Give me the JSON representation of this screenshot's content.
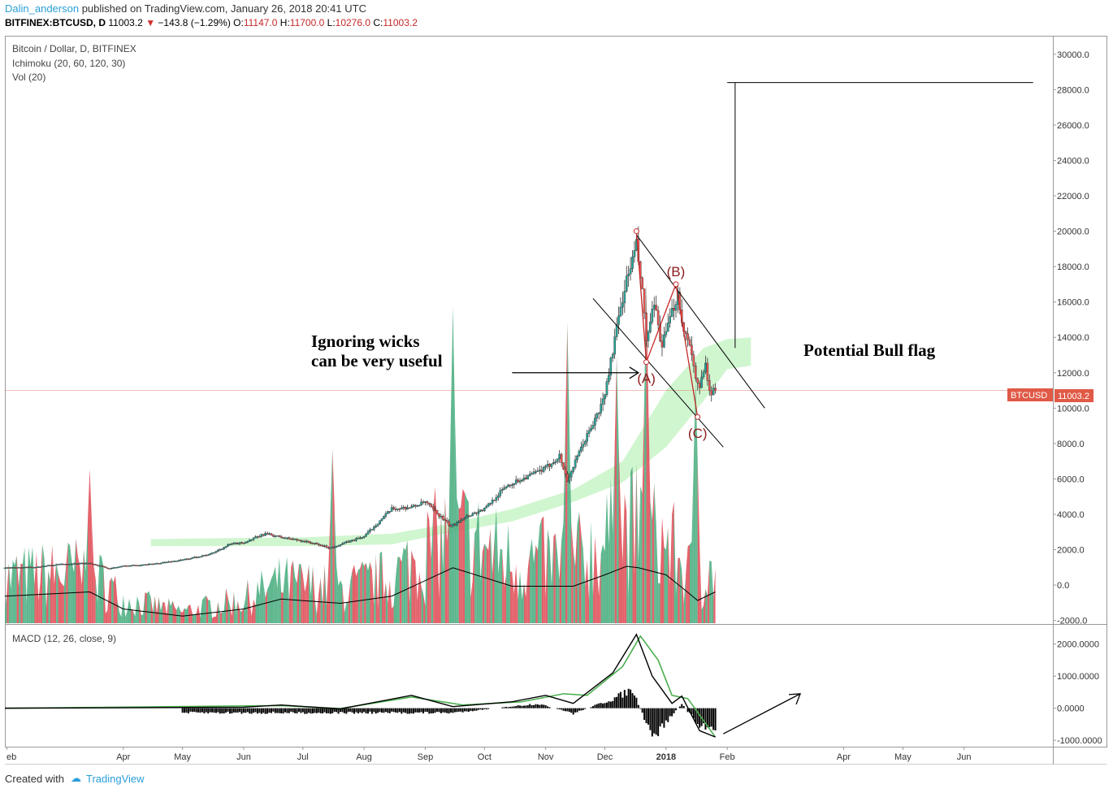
{
  "header": {
    "username": "Dalin_anderson",
    "published_text": "published on TradingView.com, January 26, 2018 20:41 UTC",
    "symbol_line": "BITFINEX:BTCUSD, D",
    "last": "11003.2",
    "change": "−143.8 (−1.29%)",
    "o_label": "O:",
    "o": "11147.0",
    "h_label": "H:",
    "h": "11700.0",
    "l_label": "L:",
    "l": "10276.0",
    "c_label": "C:",
    "c": "11003.2"
  },
  "legend": {
    "title": "Bitcoin / Dollar, D, BITFINEX",
    "ichimoku": "Ichimoku (20, 60, 120, 30)",
    "vol": "Vol (20)",
    "macd": "MACD (12, 26, close, 9)"
  },
  "annotations": {
    "wicks_line1": "Ignoring wicks",
    "wicks_line2": "can be very useful",
    "bull_flag": "Potential Bull flag",
    "wave_a": "(A)",
    "wave_b": "(B)",
    "wave_c": "(C)"
  },
  "price_tag": {
    "label": "BTCUSD",
    "value": "11003.2"
  },
  "footer": {
    "created_with": "Created with",
    "brand": "TradingView"
  },
  "colors": {
    "up": "#26a69a",
    "down": "#ef5350",
    "cloud": "#c8f5c8",
    "annotation": "#8b1a1a",
    "macd_signal": "#4caf50",
    "price_tag": "#e05a47"
  },
  "chart_data": {
    "type": "candlestick",
    "price_axis": {
      "ticks": [
        30000,
        28000,
        26000,
        24000,
        22000,
        20000,
        18000,
        16000,
        14000,
        12000,
        10000,
        8000,
        6000,
        4000,
        2000,
        0,
        -2000
      ],
      "ylim": [
        -2200,
        31000
      ]
    },
    "macd_axis": {
      "ticks": [
        2000,
        1000,
        0,
        -1000
      ],
      "ylim": [
        -1200,
        2600
      ]
    },
    "x_axis_labels": [
      "eb",
      "Apr",
      "May",
      "Jun",
      "Jul",
      "Aug",
      "Sep",
      "Oct",
      "Nov",
      "Dec",
      "2018",
      "Feb",
      "Apr",
      "May",
      "Jun"
    ],
    "x_axis_dates": [
      "2017-02-01",
      "2017-04-01",
      "2017-05-01",
      "2017-06-01",
      "2017-07-01",
      "2017-08-01",
      "2017-09-01",
      "2017-10-01",
      "2017-11-01",
      "2017-12-01",
      "2018-01-01",
      "2018-02-01",
      "2018-04-01",
      "2018-05-01",
      "2018-06-01"
    ],
    "x_range": [
      "2017-01-31",
      "2018-07-16"
    ],
    "last_bar_date": "2018-01-26",
    "price_path": [
      [
        "2017-01-31",
        970
      ],
      [
        "2017-02-15",
        1010
      ],
      [
        "2017-03-01",
        1190
      ],
      [
        "2017-03-15",
        1240
      ],
      [
        "2017-03-25",
        930
      ],
      [
        "2017-04-01",
        1080
      ],
      [
        "2017-04-15",
        1180
      ],
      [
        "2017-05-01",
        1420
      ],
      [
        "2017-05-15",
        1750
      ],
      [
        "2017-05-25",
        2300
      ],
      [
        "2017-06-01",
        2400
      ],
      [
        "2017-06-12",
        2900
      ],
      [
        "2017-06-20",
        2700
      ],
      [
        "2017-07-01",
        2500
      ],
      [
        "2017-07-15",
        2100
      ],
      [
        "2017-07-20",
        2300
      ],
      [
        "2017-08-01",
        2750
      ],
      [
        "2017-08-15",
        4300
      ],
      [
        "2017-08-25",
        4400
      ],
      [
        "2017-09-01",
        4700
      ],
      [
        "2017-09-14",
        3300
      ],
      [
        "2017-09-20",
        3800
      ],
      [
        "2017-10-01",
        4300
      ],
      [
        "2017-10-12",
        5600
      ],
      [
        "2017-10-20",
        6000
      ],
      [
        "2017-11-01",
        6600
      ],
      [
        "2017-11-08",
        7300
      ],
      [
        "2017-11-12",
        5900
      ],
      [
        "2017-11-20",
        8000
      ],
      [
        "2017-11-28",
        9800
      ],
      [
        "2017-12-01",
        10800
      ],
      [
        "2017-12-07",
        14500
      ],
      [
        "2017-12-11",
        16800
      ],
      [
        "2017-12-17",
        19200
      ],
      [
        "2017-12-20",
        16500
      ],
      [
        "2017-12-22",
        13800
      ],
      [
        "2017-12-26",
        15800
      ],
      [
        "2017-12-30",
        13500
      ],
      [
        "2018-01-03",
        15000
      ],
      [
        "2018-01-07",
        16500
      ],
      [
        "2018-01-10",
        14300
      ],
      [
        "2018-01-13",
        13800
      ],
      [
        "2018-01-16",
        11500
      ],
      [
        "2018-01-18",
        11100
      ],
      [
        "2018-01-21",
        12800
      ],
      [
        "2018-01-23",
        10800
      ],
      [
        "2018-01-26",
        11003.2
      ]
    ],
    "cloud_band": [
      [
        "2017-04-15",
        2200,
        2600
      ],
      [
        "2017-07-01",
        2200,
        2700
      ],
      [
        "2017-08-15",
        2300,
        2900
      ],
      [
        "2017-09-15",
        3000,
        3500
      ],
      [
        "2017-10-15",
        3600,
        4300
      ],
      [
        "2017-11-15",
        4700,
        5400
      ],
      [
        "2017-12-10",
        5800,
        7000
      ],
      [
        "2018-01-01",
        7800,
        11000
      ],
      [
        "2018-01-20",
        10400,
        13400
      ],
      [
        "2018-02-01",
        12200,
        13900
      ],
      [
        "2018-02-13",
        12400,
        14000
      ]
    ],
    "volume_ma_path": [
      [
        "2017-01-31",
        95
      ],
      [
        "2017-03-15",
        110
      ],
      [
        "2017-04-01",
        50
      ],
      [
        "2017-05-01",
        25
      ],
      [
        "2017-06-01",
        50
      ],
      [
        "2017-06-20",
        85
      ],
      [
        "2017-07-20",
        70
      ],
      [
        "2017-08-15",
        95
      ],
      [
        "2017-09-15",
        195
      ],
      [
        "2017-10-15",
        130
      ],
      [
        "2017-11-15",
        130
      ],
      [
        "2017-12-01",
        170
      ],
      [
        "2017-12-12",
        200
      ],
      [
        "2017-12-18",
        195
      ],
      [
        "2018-01-01",
        170
      ],
      [
        "2018-01-10",
        120
      ],
      [
        "2018-01-17",
        80
      ],
      [
        "2018-01-26",
        110
      ]
    ],
    "volume_spikes": [
      [
        "2017-03-15",
        190
      ],
      [
        "2017-07-16",
        215
      ],
      [
        "2017-09-15",
        390
      ],
      [
        "2017-11-12",
        370
      ],
      [
        "2017-12-07",
        330
      ],
      [
        "2017-12-22",
        420
      ],
      [
        "2018-01-16",
        300
      ]
    ],
    "trendlines": {
      "upper": [
        [
          "2017-12-17",
          19800
        ],
        [
          "2018-02-20",
          10000
        ]
      ],
      "lower": [
        [
          "2017-11-25",
          16200
        ],
        [
          "2018-01-30",
          7800
        ]
      ],
      "arrow": [
        [
          "2017-10-15",
          12000
        ],
        [
          "2017-12-18",
          12000
        ]
      ],
      "flagpole_vertical": [
        [
          "2018-02-05",
          13400
        ],
        [
          "2018-02-05",
          28400
        ]
      ],
      "flagpole_horizontal": [
        [
          "2018-02-01",
          28400
        ],
        [
          "2018-07-06",
          28400
        ]
      ]
    },
    "waves": [
      {
        "label": "(A)",
        "date": "2017-12-22",
        "price": 12600
      },
      {
        "label": "(B)",
        "date": "2018-01-06",
        "price": 17000
      },
      {
        "label": "(C)",
        "date": "2018-01-17",
        "price": 9500
      }
    ],
    "macd": [
      [
        "2017-01-31",
        0
      ],
      [
        "2017-06-01",
        30
      ],
      [
        "2017-06-20",
        100
      ],
      [
        "2017-07-20",
        -20
      ],
      [
        "2017-08-25",
        400
      ],
      [
        "2017-09-15",
        50
      ],
      [
        "2017-10-15",
        200
      ],
      [
        "2017-11-01",
        400
      ],
      [
        "2017-11-15",
        150
      ],
      [
        "2017-12-05",
        1100
      ],
      [
        "2017-12-17",
        2300
      ],
      [
        "2017-12-25",
        1000
      ],
      [
        "2018-01-04",
        150
      ],
      [
        "2018-01-09",
        380
      ],
      [
        "2018-01-18",
        -700
      ],
      [
        "2018-01-26",
        -900
      ]
    ],
    "macd_signal": [
      [
        "2017-01-31",
        0
      ],
      [
        "2017-06-20",
        80
      ],
      [
        "2017-07-20",
        -10
      ],
      [
        "2017-08-25",
        350
      ],
      [
        "2017-09-20",
        100
      ],
      [
        "2017-10-20",
        200
      ],
      [
        "2017-11-10",
        450
      ],
      [
        "2017-11-22",
        400
      ],
      [
        "2017-12-10",
        1300
      ],
      [
        "2017-12-19",
        2250
      ],
      [
        "2017-12-28",
        1500
      ],
      [
        "2018-01-04",
        400
      ],
      [
        "2018-01-12",
        300
      ],
      [
        "2018-01-26",
        -900
      ]
    ],
    "macd_hist": [
      [
        "2017-09-15",
        -150
      ],
      [
        "2017-10-28",
        150
      ],
      [
        "2017-11-15",
        -170
      ],
      [
        "2017-12-05",
        300
      ],
      [
        "2017-12-15",
        620
      ],
      [
        "2017-12-25",
        -1000
      ],
      [
        "2018-01-09",
        150
      ],
      [
        "2018-01-18",
        -600
      ]
    ],
    "macd_arrow": [
      [
        "2018-01-30",
        -800
      ],
      [
        "2018-03-10",
        450
      ]
    ]
  }
}
